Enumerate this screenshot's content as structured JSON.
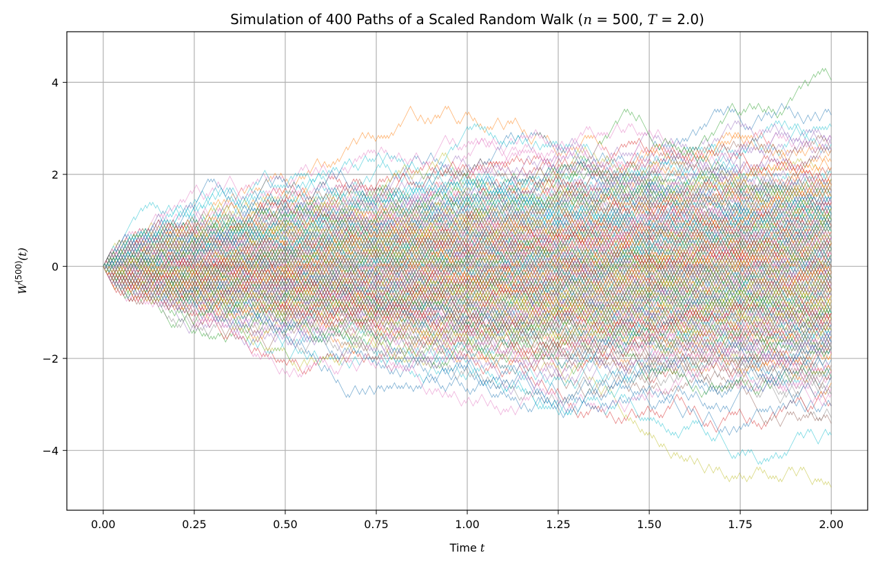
{
  "chart_data": {
    "type": "line",
    "title": {
      "prefix": "Simulation of 400 Paths of a Scaled Random Walk (",
      "n_var": "n",
      "n_eq": " = 500, ",
      "t_var": "T",
      "t_eq": " = 2.0)"
    },
    "xlabel": {
      "text": "Time ",
      "var": "t"
    },
    "ylabel": {
      "var": "W",
      "sup": "(500)",
      "arg": "(t)"
    },
    "num_paths": 400,
    "n_steps": 500,
    "T": 2.0,
    "xlim": [
      -0.1,
      2.1
    ],
    "ylim": [
      -5.3,
      5.1
    ],
    "xticks": [
      0.0,
      0.25,
      0.5,
      0.75,
      1.0,
      1.25,
      1.5,
      1.75,
      2.0
    ],
    "xtick_labels": [
      "0.00",
      "0.25",
      "0.50",
      "0.75",
      "1.00",
      "1.25",
      "1.50",
      "1.75",
      "2.00"
    ],
    "yticks": [
      -4,
      -2,
      0,
      2,
      4
    ],
    "ytick_labels": [
      "−4",
      "−2",
      "0",
      "2",
      "4"
    ],
    "grid": true,
    "line_alpha": 0.6,
    "colors": [
      "#1f77b4",
      "#ff7f0e",
      "#2ca02c",
      "#d62728",
      "#9467bd",
      "#8c564b",
      "#e377c2",
      "#7f7f7f",
      "#bcbd22",
      "#17becf"
    ],
    "approx_final_range": [
      -4.7,
      4.2
    ]
  }
}
